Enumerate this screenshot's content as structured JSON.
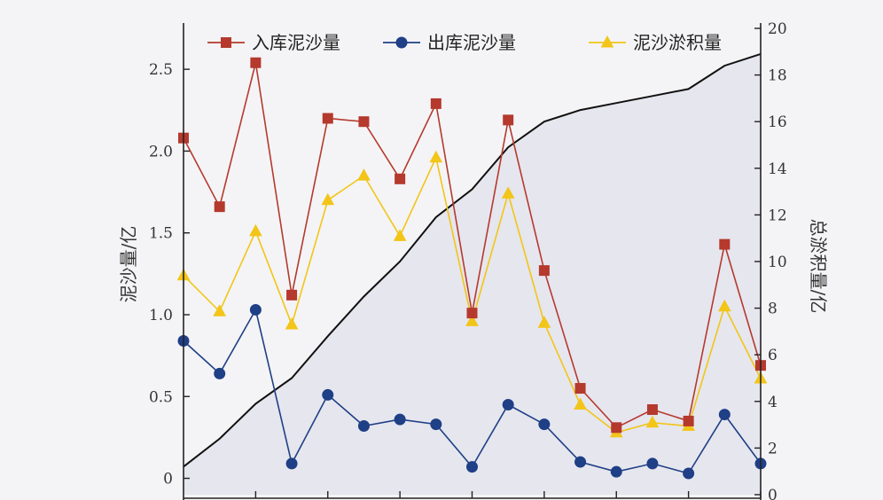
{
  "chart_data": {
    "type": "line",
    "ylabel_left": "泥沙量/亿",
    "ylabel_right": "总淤积量/亿",
    "ylim_left": [
      -0.1,
      2.75
    ],
    "ylim_right": [
      0,
      20
    ],
    "left_ticks": [
      "0",
      "0.5",
      "1.0",
      "1.5",
      "2.0",
      "2.5"
    ],
    "right_ticks": [
      "0",
      "2",
      "4",
      "6",
      "8",
      "10",
      "12",
      "14",
      "16",
      "18",
      "20"
    ],
    "legend_position": "top",
    "series": [
      {
        "name": "入库泥沙量",
        "axis": "left",
        "color": "#b5392d",
        "marker": "square",
        "values": [
          2.08,
          1.66,
          2.54,
          1.12,
          2.2,
          2.18,
          1.83,
          2.29,
          1.01,
          2.19,
          1.27,
          0.55,
          0.31,
          0.42,
          0.35,
          1.43,
          0.69
        ]
      },
      {
        "name": "出库泥沙量",
        "axis": "left",
        "color": "#1f3f86",
        "marker": "circle",
        "values": [
          0.84,
          0.64,
          1.03,
          0.09,
          0.51,
          0.32,
          0.36,
          0.33,
          0.07,
          0.45,
          0.33,
          0.1,
          0.04,
          0.09,
          0.03,
          0.39,
          0.09
        ]
      },
      {
        "name": "泥沙淤积量",
        "axis": "left",
        "color": "#f2c518",
        "marker": "triangle",
        "values": [
          1.24,
          1.02,
          1.51,
          0.94,
          1.7,
          1.85,
          1.48,
          1.96,
          0.96,
          1.74,
          0.95,
          0.45,
          0.28,
          0.34,
          0.32,
          1.05,
          0.61
        ]
      },
      {
        "name": "",
        "axis": "right",
        "color": "#111111",
        "marker": "none",
        "values": [
          1.2,
          2.4,
          3.9,
          5.0,
          6.8,
          8.5,
          10.0,
          11.9,
          13.1,
          14.9,
          16.0,
          16.5,
          16.8,
          17.1,
          17.4,
          18.4,
          18.9
        ]
      }
    ]
  }
}
